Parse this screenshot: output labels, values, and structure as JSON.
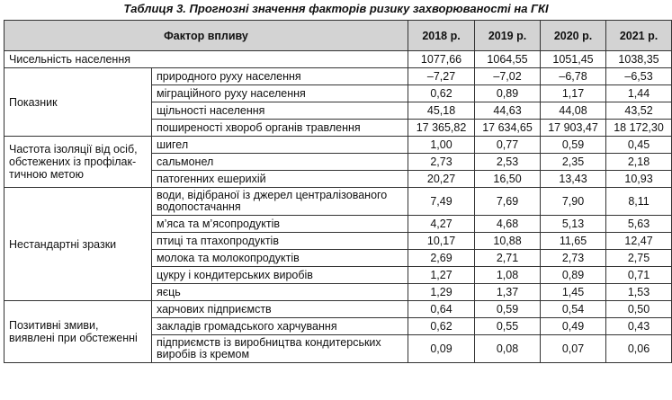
{
  "caption": "Таблиця 3. Прогнозні значення факторів ризику захворюваності на ГКІ",
  "header": {
    "factor": "Фактор впливу",
    "years": [
      "2018 р.",
      "2019 р.",
      "2020 р.",
      "2021 р."
    ]
  },
  "population": {
    "label": "Чисельність населення",
    "values": [
      "1077,66",
      "1064,55",
      "1051,45",
      "1038,35"
    ]
  },
  "groups": [
    {
      "label": "Показник",
      "rows": [
        {
          "sub": "природного руху населення",
          "values": [
            "–7,27",
            "–7,02",
            "–6,78",
            "–6,53"
          ]
        },
        {
          "sub": "міграційного руху населення",
          "values": [
            "0,62",
            "0,89",
            "1,17",
            "1,44"
          ]
        },
        {
          "sub": "щільності населення",
          "values": [
            "45,18",
            "44,63",
            "44,08",
            "43,52"
          ]
        },
        {
          "sub": "поширеності хвороб органів травлення",
          "values": [
            "17 365,82",
            "17 634,65",
            "17 903,47",
            "18 172,30"
          ]
        }
      ]
    },
    {
      "label": "Частота ізоляції від осіб, обстежених із профілак-тичною метою",
      "rows": [
        {
          "sub": "шигел",
          "values": [
            "1,00",
            "0,77",
            "0,59",
            "0,45"
          ]
        },
        {
          "sub": "сальмонел",
          "values": [
            "2,73",
            "2,53",
            "2,35",
            "2,18"
          ]
        },
        {
          "sub": "патогенних ешерихій",
          "values": [
            "20,27",
            "16,50",
            "13,43",
            "10,93"
          ]
        }
      ]
    },
    {
      "label": "Нестандартні зразки",
      "rows": [
        {
          "sub": "води, відібраної із джерел централізованого водопостачання",
          "values": [
            "7,49",
            "7,69",
            "7,90",
            "8,11"
          ]
        },
        {
          "sub": "м’яса та м’ясопродуктів",
          "values": [
            "4,27",
            "4,68",
            "5,13",
            "5,63"
          ]
        },
        {
          "sub": "птиці та птахопродуктів",
          "values": [
            "10,17",
            "10,88",
            "11,65",
            "12,47"
          ]
        },
        {
          "sub": "молока та молокопродуктів",
          "values": [
            "2,69",
            "2,71",
            "2,73",
            "2,75"
          ]
        },
        {
          "sub": "цукру і кондитерських виробів",
          "values": [
            "1,27",
            "1,08",
            "0,89",
            "0,71"
          ]
        },
        {
          "sub": "яєць",
          "values": [
            "1,29",
            "1,37",
            "1,45",
            "1,53"
          ]
        }
      ]
    },
    {
      "label": "Позитивні змиви, виявлені при обстеженні",
      "rows": [
        {
          "sub": "харчових підприємств",
          "values": [
            "0,64",
            "0,59",
            "0,54",
            "0,50"
          ]
        },
        {
          "sub": "закладів громадського харчування",
          "values": [
            "0,62",
            "0,55",
            "0,49",
            "0,43"
          ]
        },
        {
          "sub": "підприємств із виробництва кондитерських виробів із кремом",
          "values": [
            "0,09",
            "0,08",
            "0,07",
            "0,06"
          ]
        }
      ]
    }
  ]
}
